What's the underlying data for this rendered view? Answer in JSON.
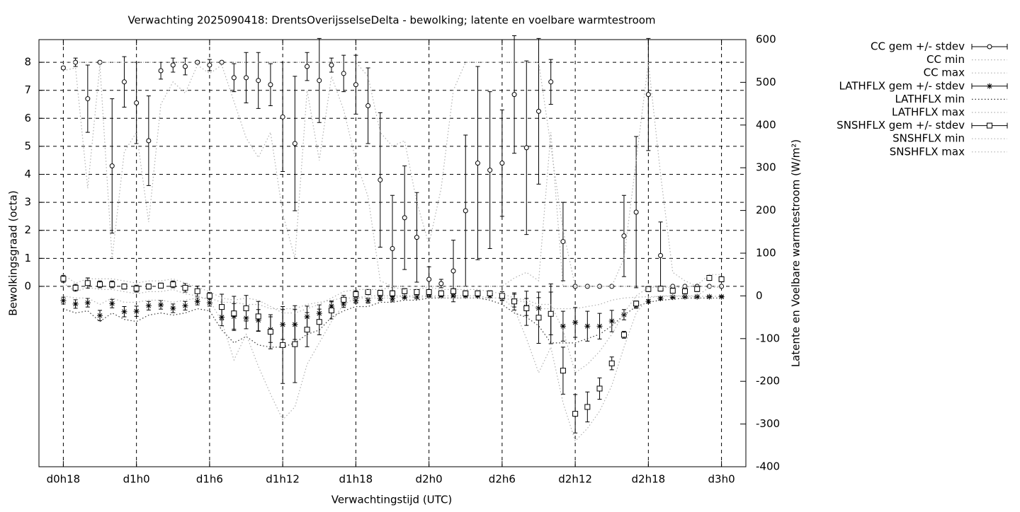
{
  "chart_data": {
    "type": "errorbar",
    "title": "Verwachting 2025090418: DrentsOverijsselseDelta - bewolking; latente en voelbare warmtestroom",
    "xlabel": "Verwachtingstijd (UTC)",
    "ylabel": "Bewolkingsgraad (octa)",
    "y2label": "Latente en Voelbare warmtestroom (W/m²)",
    "xlim": [
      16,
      74
    ],
    "xticks": [
      {
        "value": 18,
        "label": "d0h18"
      },
      {
        "value": 24,
        "label": "d1h0"
      },
      {
        "value": 30,
        "label": "d1h6"
      },
      {
        "value": 36,
        "label": "d1h12"
      },
      {
        "value": 42,
        "label": "d1h18"
      },
      {
        "value": 48,
        "label": "d2h0"
      },
      {
        "value": 54,
        "label": "d2h6"
      },
      {
        "value": 60,
        "label": "d2h12"
      },
      {
        "value": 66,
        "label": "d2h18"
      },
      {
        "value": 72,
        "label": "d3h0"
      }
    ],
    "ylim": [
      -6.44,
      8.81
    ],
    "yticks": [
      0,
      1,
      2,
      3,
      4,
      5,
      6,
      7,
      8
    ],
    "y2lim": [
      -400,
      600
    ],
    "y2ticks": [
      -400,
      -300,
      -200,
      -100,
      0,
      100,
      200,
      300,
      400,
      500,
      600
    ],
    "grid": true,
    "legend": "outside-top-right",
    "x": [
      18,
      19,
      20,
      21,
      22,
      23,
      24,
      25,
      26,
      27,
      28,
      29,
      30,
      31,
      32,
      33,
      34,
      35,
      36,
      37,
      38,
      39,
      40,
      41,
      42,
      43,
      44,
      45,
      46,
      47,
      48,
      49,
      50,
      51,
      52,
      53,
      54,
      55,
      56,
      57,
      58,
      59,
      60,
      61,
      62,
      63,
      64,
      65,
      66,
      67,
      68,
      69,
      70,
      71,
      72
    ],
    "series": [
      {
        "name": "CC gem +/- stdev",
        "style": "errorbars",
        "marker": "circle",
        "color": "#000000",
        "axis": "y",
        "values": [
          7.8,
          8.0,
          6.7,
          8.0,
          4.3,
          7.3,
          6.55,
          5.2,
          7.7,
          7.9,
          7.85,
          8.0,
          7.9,
          8.0,
          7.45,
          7.45,
          7.35,
          7.2,
          6.05,
          5.1,
          7.85,
          7.35,
          7.9,
          7.6,
          7.2,
          6.45,
          3.8,
          1.35,
          2.45,
          1.75,
          0.25,
          0.1,
          0.55,
          2.7,
          4.4,
          4.15,
          4.4,
          6.85,
          4.95,
          6.25,
          7.3,
          1.6,
          0,
          0,
          0,
          0,
          1.8,
          2.65,
          6.85,
          1.1,
          0,
          0,
          0,
          0,
          0
        ],
        "errors": [
          0.05,
          0.15,
          1.2,
          0,
          2.4,
          0.9,
          1.45,
          1.6,
          0.3,
          0.25,
          0.3,
          0.05,
          0.2,
          0,
          0.5,
          0.9,
          1.0,
          0.75,
          1.95,
          2.4,
          0.5,
          1.5,
          0.25,
          0.65,
          1.05,
          1.35,
          2.4,
          1.9,
          1.85,
          1.6,
          0.45,
          0.15,
          1.1,
          2.7,
          3.45,
          2.8,
          1.9,
          2.1,
          3.1,
          2.6,
          0.8,
          1.4,
          0,
          0,
          0,
          0,
          1.45,
          2.7,
          2.0,
          1.2,
          0,
          0,
          0,
          0,
          0
        ]
      },
      {
        "name": "CC min",
        "style": "dots",
        "color": "#b0b0b0",
        "axis": "y",
        "values": [
          7.7,
          7.8,
          3.5,
          7.9,
          1.0,
          4.8,
          5.5,
          2.3,
          6.5,
          7.3,
          6.9,
          7.9,
          7.6,
          7.9,
          6.6,
          5.3,
          4.6,
          5.5,
          2.6,
          1.0,
          7.0,
          4.5,
          7.5,
          6.3,
          4.5,
          3.2,
          0.2,
          0,
          0,
          0,
          0,
          0,
          0,
          0,
          0,
          0,
          0,
          0.3,
          0.5,
          0.2,
          5.5,
          0,
          0,
          0,
          0,
          0,
          0,
          0,
          0,
          0,
          0,
          0,
          0,
          0,
          0
        ]
      },
      {
        "name": "CC max",
        "style": "dots",
        "color": "#b0b0b0",
        "axis": "y",
        "values": [
          8,
          8,
          8,
          8,
          8,
          8,
          8,
          8,
          8,
          8,
          8,
          8,
          8,
          8,
          8,
          8,
          8,
          8,
          8,
          8,
          8,
          8,
          8,
          8,
          8,
          7.5,
          5.5,
          5,
          5.2,
          3,
          1.5,
          3.5,
          7,
          8,
          8,
          8,
          8,
          8,
          8,
          8,
          5,
          2,
          0,
          0,
          0,
          0,
          1,
          4.5,
          8,
          4,
          0.5,
          0.2,
          0,
          0,
          0
        ]
      },
      {
        "name": "LATHFLX gem +/- stdev",
        "style": "errorbars",
        "marker": "star",
        "color": "#000000",
        "axis": "y2",
        "values": [
          -11,
          -19,
          -16,
          -46,
          -18,
          -37,
          -36,
          -23,
          -21,
          -29,
          -23,
          -13,
          -16,
          -50,
          -48,
          -52,
          -57,
          -79,
          -67,
          -67,
          -49,
          -41,
          -24,
          -19,
          -11,
          -11,
          -6,
          -6,
          -3,
          -3,
          0,
          0,
          0,
          0,
          0,
          0,
          -3,
          -11,
          -26,
          -29,
          -41,
          -71,
          -62,
          -71,
          -71,
          -59,
          -44,
          -23,
          -13,
          -6,
          -3,
          -2,
          -2,
          -2,
          -2
        ],
        "errors": [
          8,
          10,
          10,
          12,
          10,
          12,
          12,
          10,
          10,
          10,
          10,
          8,
          8,
          20,
          30,
          25,
          25,
          30,
          35,
          35,
          25,
          20,
          12,
          8,
          6,
          6,
          5,
          4,
          3,
          3,
          2,
          2,
          2,
          2,
          2,
          4,
          8,
          15,
          20,
          25,
          50,
          35,
          35,
          35,
          30,
          25,
          12,
          6,
          4,
          3,
          2,
          2,
          2,
          2,
          2
        ]
      },
      {
        "name": "LATHFLX min",
        "style": "dots",
        "color": "#333333",
        "axis": "y2",
        "values": [
          -30,
          -40,
          -35,
          -60,
          -40,
          -55,
          -60,
          -45,
          -40,
          -45,
          -40,
          -30,
          -35,
          -80,
          -110,
          -95,
          -115,
          -120,
          -120,
          -110,
          -90,
          -80,
          -50,
          -35,
          -25,
          -25,
          -15,
          -15,
          -10,
          -10,
          -5,
          -5,
          -5,
          -5,
          -5,
          -10,
          -20,
          -40,
          -50,
          -70,
          -110,
          -110,
          -110,
          -100,
          -90,
          -70,
          -45,
          -25,
          -15,
          -10,
          -8,
          -5,
          -5,
          -5,
          -5
        ]
      },
      {
        "name": "LATHFLX max",
        "style": "dots",
        "color": "#b0b0b0",
        "axis": "y2",
        "values": [
          0,
          -5,
          -5,
          -20,
          -5,
          -15,
          -15,
          -10,
          -10,
          -15,
          -10,
          -5,
          -5,
          -15,
          -15,
          -20,
          -20,
          -30,
          -30,
          -30,
          -20,
          -15,
          -10,
          -5,
          -5,
          0,
          0,
          0,
          0,
          0,
          0,
          0,
          0,
          0,
          0,
          -5,
          -5,
          -10,
          -15,
          -30,
          -30,
          -30,
          -30,
          -25,
          -20,
          -10,
          -5,
          -3,
          -2,
          -1,
          -1,
          -1,
          -1,
          -1,
          -1
        ]
      },
      {
        "name": "SNSHFLX gem +/- stdev",
        "style": "errorbars",
        "marker": "square",
        "color": "#000000",
        "axis": "y2",
        "values": [
          40,
          19,
          30,
          27,
          27,
          22,
          17,
          22,
          24,
          27,
          19,
          11,
          0,
          -26,
          -41,
          -29,
          -48,
          -84,
          -115,
          -113,
          -79,
          -61,
          -34,
          -9,
          4,
          9,
          7,
          6,
          11,
          9,
          9,
          6,
          11,
          6,
          6,
          6,
          0,
          -13,
          -29,
          -51,
          -42,
          -175,
          -276,
          -260,
          -217,
          -158,
          -91,
          -18,
          16,
          17,
          12,
          11,
          16,
          42,
          39
        ],
        "errors": [
          8,
          8,
          12,
          8,
          8,
          6,
          8,
          6,
          6,
          8,
          10,
          12,
          8,
          30,
          40,
          30,
          35,
          40,
          90,
          90,
          40,
          30,
          20,
          10,
          8,
          6,
          6,
          6,
          6,
          6,
          5,
          6,
          6,
          6,
          6,
          6,
          10,
          20,
          40,
          60,
          70,
          55,
          45,
          35,
          25,
          15,
          8,
          6,
          6,
          6,
          6,
          6,
          6,
          6,
          6
        ]
      },
      {
        "name": "SNSHFLX min",
        "style": "dots",
        "color": "#b0b0b0",
        "axis": "y2",
        "values": [
          30,
          10,
          20,
          15,
          15,
          10,
          5,
          10,
          10,
          15,
          5,
          0,
          -10,
          -60,
          -150,
          -90,
          -165,
          -230,
          -290,
          -260,
          -160,
          -110,
          -60,
          -20,
          -5,
          -5,
          -5,
          -5,
          0,
          -5,
          0,
          -5,
          -5,
          -5,
          -5,
          -5,
          -5,
          -30,
          -100,
          -180,
          -120,
          -250,
          -340,
          -310,
          -270,
          -210,
          -120,
          -40,
          -5,
          0,
          0,
          0,
          0,
          20,
          20
        ]
      },
      {
        "name": "SNSHFLX max",
        "style": "dots",
        "color": "#b0b0b0",
        "axis": "y2",
        "values": [
          50,
          30,
          40,
          40,
          40,
          35,
          30,
          35,
          35,
          40,
          30,
          20,
          10,
          -5,
          -10,
          -5,
          -10,
          -25,
          -40,
          -40,
          -30,
          -20,
          -5,
          10,
          15,
          15,
          15,
          20,
          15,
          15,
          20,
          15,
          15,
          15,
          15,
          10,
          5,
          -5,
          -10,
          -20,
          -20,
          -80,
          -180,
          -160,
          -130,
          -90,
          -40,
          0,
          20,
          20,
          20,
          20,
          25,
          50,
          50
        ]
      }
    ]
  }
}
